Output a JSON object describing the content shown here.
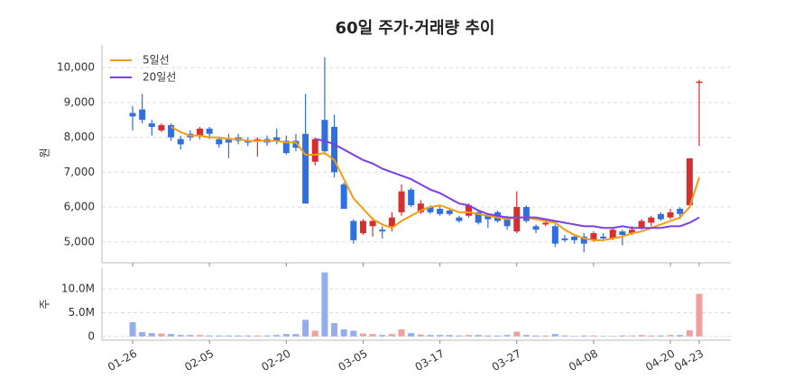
{
  "chart_data": [
    {
      "type": "candlestick",
      "title": "60일 주가·거래량 추이",
      "y_label": "원",
      "open": [
        8700,
        8800,
        8400,
        8200,
        8350,
        7950,
        8100,
        8050,
        8250,
        7950,
        7950,
        8000,
        7900,
        7900,
        7950,
        8000,
        7900,
        7900,
        8100,
        7300,
        8500,
        8300,
        6650,
        5600,
        5250,
        5450,
        5350,
        5450,
        5850,
        6500,
        5850,
        6000,
        5950,
        5900,
        5700,
        5750,
        5850,
        5750,
        5850,
        5650,
        5300,
        6000,
        5450,
        5500,
        5450,
        5100,
        5150,
        5150,
        5050,
        5150,
        5100,
        5300,
        5250,
        5400,
        5550,
        5800,
        5700,
        5950,
        6050,
        9600
      ],
      "high": [
        8900,
        9250,
        8500,
        8400,
        8400,
        8050,
        8200,
        8300,
        8300,
        8000,
        8100,
        8100,
        8000,
        8000,
        8050,
        8250,
        8050,
        8100,
        9250,
        8000,
        10300,
        8650,
        6700,
        5650,
        5650,
        5700,
        5450,
        5850,
        6650,
        6550,
        6200,
        6050,
        6050,
        5950,
        5750,
        6100,
        5900,
        5800,
        5900,
        5750,
        6450,
        6050,
        5500,
        5600,
        5500,
        5200,
        5200,
        5250,
        5300,
        5250,
        5400,
        5350,
        5450,
        5650,
        5750,
        5850,
        5950,
        6000,
        7400,
        9650
      ],
      "low": [
        8200,
        8400,
        8050,
        8150,
        7900,
        7650,
        7900,
        7950,
        7950,
        7700,
        7400,
        7800,
        7750,
        7450,
        7750,
        7800,
        7500,
        7600,
        6100,
        7200,
        7500,
        6850,
        5950,
        4950,
        5200,
        5150,
        5100,
        5300,
        5750,
        6000,
        5800,
        5800,
        5750,
        5750,
        5550,
        5700,
        5500,
        5400,
        5550,
        5350,
        5250,
        5550,
        5250,
        5450,
        4850,
        5000,
        4950,
        4700,
        5000,
        5050,
        5050,
        4900,
        5200,
        5350,
        5450,
        5600,
        5650,
        5650,
        6000,
        7750
      ],
      "close": [
        8600,
        8500,
        8300,
        8350,
        8000,
        7800,
        8000,
        8250,
        8100,
        7800,
        7850,
        7900,
        7850,
        7950,
        7850,
        7900,
        7550,
        7700,
        6100,
        7950,
        7600,
        7000,
        5950,
        5050,
        5600,
        5600,
        5300,
        5700,
        6450,
        6050,
        6100,
        5850,
        5800,
        5800,
        5600,
        6050,
        5550,
        5650,
        5600,
        5450,
        6000,
        5600,
        5350,
        5550,
        4950,
        5050,
        5050,
        4950,
        5250,
        5100,
        5350,
        5200,
        5350,
        5600,
        5700,
        5650,
        5850,
        5800,
        7400,
        9600
      ],
      "up_color": "#d62f2f",
      "down_color": "#2f6fe0",
      "series": [
        {
          "name": "5일선",
          "color": "#f39c12",
          "values": [
            null,
            null,
            null,
            null,
            8300,
            8150,
            8050,
            8050,
            8000,
            8000,
            7950,
            7950,
            7900,
            7900,
            7900,
            7900,
            7850,
            7850,
            7500,
            7500,
            7550,
            7350,
            6800,
            6250,
            5950,
            5650,
            5500,
            5400,
            5600,
            5750,
            5900,
            6000,
            6050,
            5950,
            5850,
            5850,
            5800,
            5750,
            5700,
            5650,
            5700,
            5700,
            5650,
            5600,
            5550,
            5350,
            5200,
            5100,
            5050,
            5050,
            5100,
            5150,
            5250,
            5300,
            5400,
            5500,
            5600,
            5700,
            6000,
            6850
          ]
        },
        {
          "name": "20일선",
          "color": "#7b3fe4",
          "values": [
            null,
            null,
            null,
            null,
            null,
            null,
            null,
            null,
            null,
            null,
            null,
            null,
            null,
            null,
            null,
            null,
            null,
            null,
            null,
            7950,
            7900,
            7800,
            7650,
            7500,
            7350,
            7250,
            7100,
            7000,
            6900,
            6800,
            6650,
            6500,
            6400,
            6250,
            6100,
            6050,
            5900,
            5800,
            5750,
            5700,
            5700,
            5700,
            5700,
            5650,
            5600,
            5550,
            5500,
            5450,
            5450,
            5400,
            5400,
            5450,
            5400,
            5400,
            5400,
            5400,
            5450,
            5450,
            5550,
            5700
          ]
        }
      ],
      "ylim": [
        4400,
        10650
      ],
      "yticks": [
        {
          "value": 5000,
          "label": "5,000"
        },
        {
          "value": 6000,
          "label": "6,000"
        },
        {
          "value": 7000,
          "label": "7,000"
        },
        {
          "value": 8000,
          "label": "8,000"
        },
        {
          "value": 9000,
          "label": "9,000"
        },
        {
          "value": 10000,
          "label": "10,000"
        }
      ],
      "grid": true,
      "legend": "upper left"
    },
    {
      "type": "bar",
      "y_label": "주",
      "categories": [
        "01-26",
        null,
        null,
        null,
        null,
        null,
        null,
        null,
        "02-05",
        null,
        null,
        null,
        null,
        null,
        null,
        null,
        "02-20",
        null,
        null,
        null,
        null,
        null,
        null,
        null,
        "03-05",
        null,
        null,
        null,
        null,
        null,
        null,
        null,
        "03-17",
        null,
        null,
        null,
        null,
        null,
        null,
        null,
        "03-27",
        null,
        null,
        null,
        null,
        null,
        null,
        null,
        "04-08",
        null,
        null,
        null,
        null,
        null,
        null,
        null,
        "04-20",
        null,
        null,
        "04-23"
      ],
      "values": [
        3000000,
        900000,
        700000,
        600000,
        500000,
        300000,
        300000,
        300000,
        200000,
        200000,
        200000,
        200000,
        200000,
        200000,
        200000,
        300000,
        500000,
        500000,
        3500000,
        1200000,
        13500000,
        2800000,
        1500000,
        1200000,
        600000,
        500000,
        300000,
        500000,
        1500000,
        700000,
        400000,
        300000,
        300000,
        300000,
        200000,
        300000,
        300000,
        200000,
        200000,
        300000,
        1000000,
        300000,
        200000,
        200000,
        500000,
        200000,
        100000,
        200000,
        200000,
        100000,
        100000,
        200000,
        200000,
        300000,
        200000,
        200000,
        300000,
        300000,
        1300000,
        9000000
      ],
      "up_color": "#f0a0a0",
      "down_color": "#93adf0",
      "ylim": [
        -800000,
        14400000
      ],
      "yticks": [
        0,
        {
          "value": 5000000,
          "label": "5.0M"
        },
        {
          "value": 10000000,
          "label": "10.0M"
        }
      ],
      "grid": true
    }
  ]
}
